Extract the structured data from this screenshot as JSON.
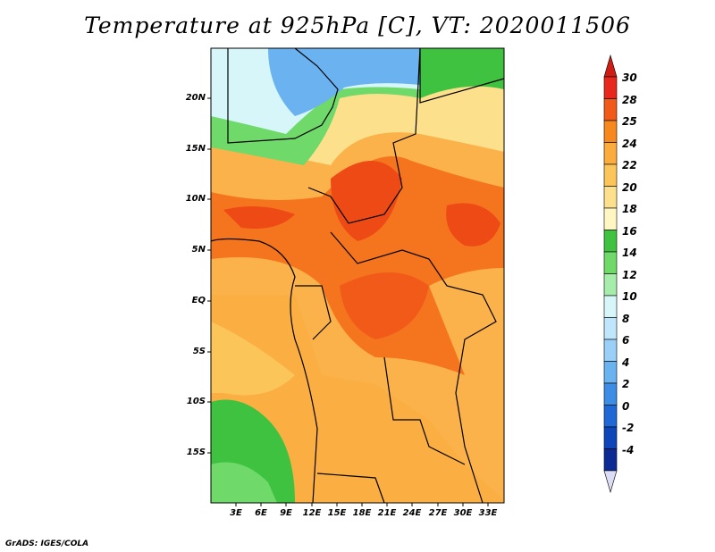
{
  "title": "Temperature at 925hPa [C], VT: 2020011506",
  "credit": "GrADS: IGES/COLA",
  "map": {
    "lat_labels": [
      "20N",
      "15N",
      "10N",
      "5N",
      "EQ",
      "5S",
      "10S",
      "15S"
    ],
    "lon_labels": [
      "3E",
      "6E",
      "9E",
      "12E",
      "15E",
      "18E",
      "21E",
      "24E",
      "27E",
      "30E",
      "33E"
    ]
  },
  "colorbar": {
    "labels": [
      "30",
      "28",
      "25",
      "24",
      "22",
      "20",
      "18",
      "16",
      "14",
      "12",
      "10",
      "8",
      "6",
      "4",
      "2",
      "0",
      "-2",
      "-4"
    ],
    "colors": [
      "#e8281f",
      "#f25a1a",
      "#f6881e",
      "#fbac3c",
      "#fcc55a",
      "#fde08c",
      "#fff6c4",
      "#3ec23f",
      "#6fd96a",
      "#a6ecaa",
      "#d6f6f9",
      "#bfe6fb",
      "#9ad0f7",
      "#6ab2f0",
      "#3d8de6",
      "#1f68d6",
      "#0e45b8",
      "#0b2a94"
    ],
    "top_arrow_color": "#cf1d14",
    "bottom_arrow_color": "#dcdcf4"
  },
  "field_colors": {
    "water": "#fbc86a",
    "hot": "#f5741e",
    "hottest": "#ee4a16",
    "warm": "#f8a43a",
    "mild": "#fde08c",
    "cool_green": "#6fd96a",
    "green": "#3ec23f",
    "pale": "#d6f6f9",
    "blue": "#6ab2f0"
  }
}
